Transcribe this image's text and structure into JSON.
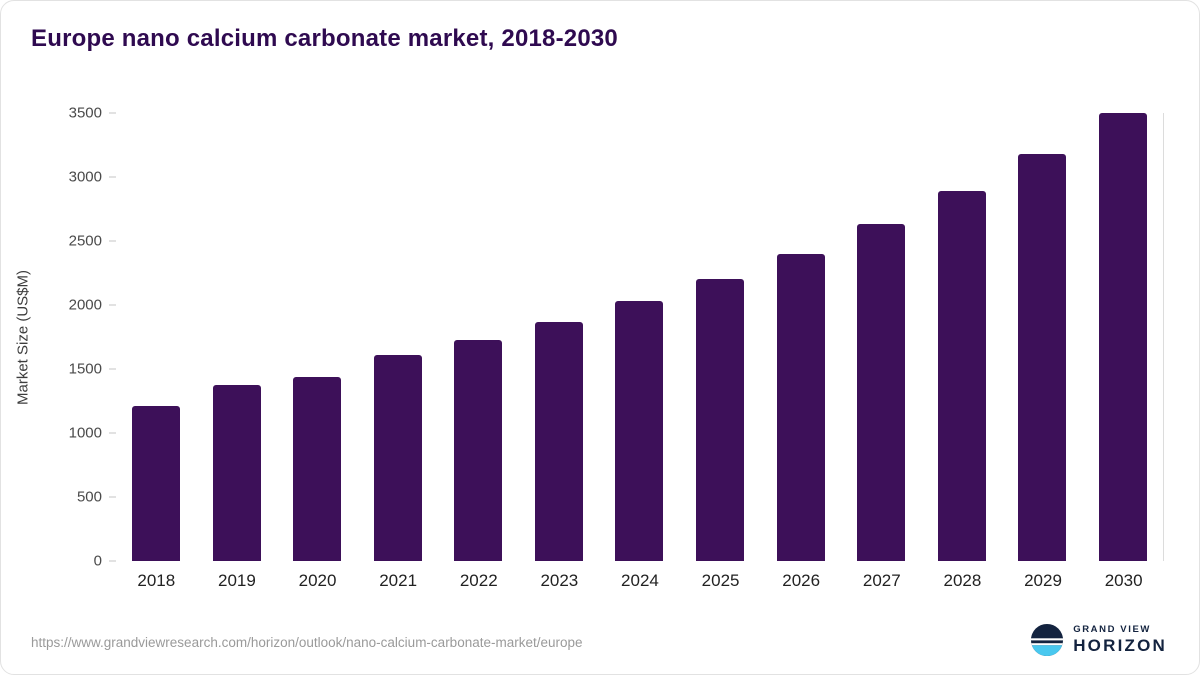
{
  "title": "Europe nano calcium carbonate market, 2018-2030",
  "chart_data": {
    "type": "bar",
    "title": "Europe nano calcium carbonate market, 2018-2030",
    "categories": [
      "2018",
      "2019",
      "2020",
      "2021",
      "2022",
      "2023",
      "2024",
      "2025",
      "2026",
      "2027",
      "2028",
      "2029",
      "2030"
    ],
    "values": [
      1210,
      1375,
      1435,
      1610,
      1730,
      1870,
      2030,
      2205,
      2400,
      2630,
      2890,
      3180,
      3500
    ],
    "xlabel": "",
    "ylabel": "Market Size (US$M)",
    "ylim": [
      0,
      3500
    ],
    "yticks": [
      0,
      500,
      1000,
      1500,
      2000,
      2500,
      3000,
      3500
    ],
    "bar_color": "#3d1059",
    "title_color": "#2f0a50",
    "grid": false,
    "legend": false
  },
  "footer": {
    "source_url": "https://www.grandviewresearch.com/horizon/outlook/nano-calcium-carbonate-market/europe",
    "logo": {
      "line1": "GRAND VIEW",
      "line2": "HORIZON",
      "navy": "#13233f",
      "light_blue": "#49c8ef"
    }
  }
}
